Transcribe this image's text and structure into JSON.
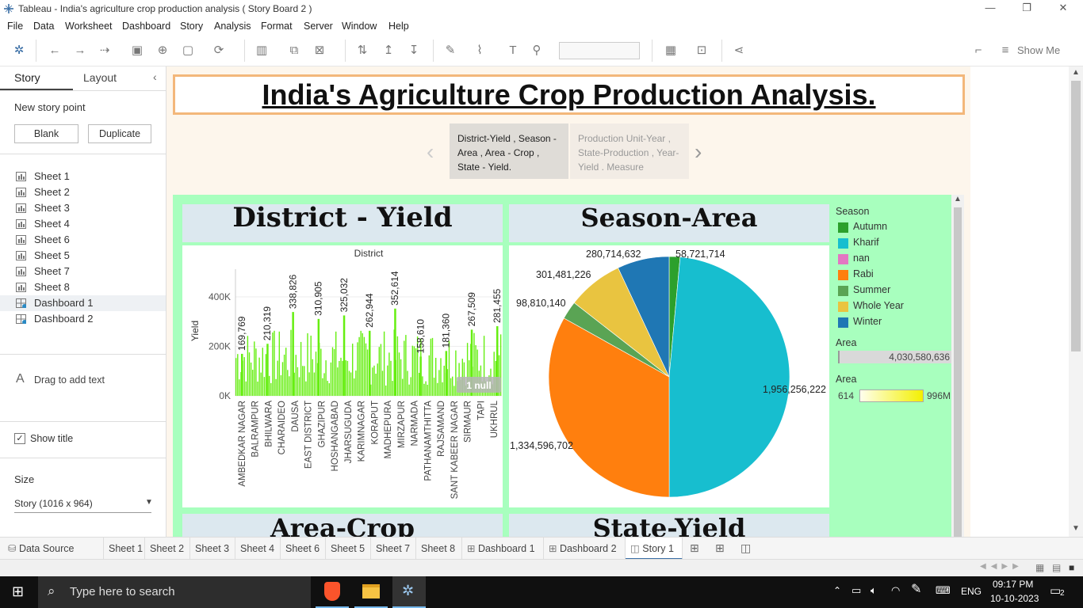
{
  "window": {
    "title": "Tableau - India's agriculture crop production analysis ( Story Board 2 )",
    "minimize": "—",
    "restore": "❐",
    "close": "✕"
  },
  "menu": [
    "File",
    "Data",
    "Worksheet",
    "Dashboard",
    "Story",
    "Analysis",
    "Format",
    "Server",
    "Window",
    "Help"
  ],
  "toolbar": {
    "show_me": "Show Me"
  },
  "left_pane": {
    "tabs": {
      "story": "Story",
      "layout": "Layout"
    },
    "new_story_point": "New story point",
    "blank_label": "Blank",
    "duplicate_label": "Duplicate",
    "items": [
      "Sheet 1",
      "Sheet 2",
      "Sheet 3",
      "Sheet 4",
      "Sheet 6",
      "Sheet 5",
      "Sheet 7",
      "Sheet 8",
      "Dashboard 1",
      "Dashboard 2"
    ],
    "drag_text": "Drag to add text",
    "show_title": "Show title",
    "size_heading": "Size",
    "size_value": "Story (1016 x 964)"
  },
  "story": {
    "title": "India's Agriculture Crop Production Analysis.",
    "points": [
      "District-Yield , Season - Area , Area - Crop , State - Yield.",
      "Production Unit-Year , State-Production , Year-Yield . Measure"
    ]
  },
  "dashboard": {
    "panel_titles": {
      "district_yield": "District - Yield",
      "season_area": "Season-Area",
      "area_crop": "Area-Crop",
      "state_yield": "State-Yield"
    },
    "legend": {
      "season_title": "Season",
      "area_title": "Area",
      "area_value": "4,030,580,636",
      "area2_title": "Area",
      "area2_min": "614",
      "area2_max": "996M"
    },
    "null_badge": "1 null"
  },
  "chart_data": [
    {
      "type": "bar",
      "title": "District",
      "ylabel": "Yield",
      "yticks": [
        "0K",
        "200K",
        "400K"
      ],
      "ylim": [
        0,
        480000
      ],
      "categories": [
        "AMBEDKAR NAGAR",
        "BALRAMPUR",
        "BHILWARA",
        "CHARAIDEO",
        "DAUSA",
        "EAST DISTRICT",
        "GHAZIPUR",
        "HOSHANGABAD",
        "JHARSUGUDA",
        "KARIMNAGAR",
        "KORAPUT",
        "MADHEPURA",
        "MIRZAPUR",
        "NARMADA",
        "PATHANAMTHITTA",
        "RAJSAMAND",
        "SANT KABEER NAGAR",
        "SIRMAUR",
        "TAPI",
        "UKHRUL"
      ],
      "labeled_values": [
        {
          "label": "169,769",
          "value": 169769
        },
        {
          "label": "210,319",
          "value": 210319
        },
        {
          "label": "338,826",
          "value": 338826
        },
        {
          "label": "310,905",
          "value": 310905
        },
        {
          "label": "325,032",
          "value": 325032
        },
        {
          "label": "262,944",
          "value": 262944
        },
        {
          "label": "352,614",
          "value": 352614
        },
        {
          "label": "158,610",
          "value": 158610
        },
        {
          "label": "181,360",
          "value": 181360
        },
        {
          "label": "267,509",
          "value": 267509
        },
        {
          "label": "281,455",
          "value": 281455
        }
      ],
      "bar_color": "#66ee11"
    },
    {
      "type": "pie",
      "series_name": "Season",
      "slices": [
        {
          "name": "Autumn",
          "value": 58721714,
          "label": "58,721,714",
          "color": "#2ca02c"
        },
        {
          "name": "Kharif",
          "value": 1956256222,
          "label": "1,956,256,222",
          "color": "#17becf"
        },
        {
          "name": "nan",
          "value": 0,
          "label": "",
          "color": "#e377c2"
        },
        {
          "name": "Rabi",
          "value": 1334596702,
          "label": "1,334,596,702",
          "color": "#ff7f0e"
        },
        {
          "name": "Summer",
          "value": 98810140,
          "label": "98,810,140",
          "color": "#5aa454"
        },
        {
          "name": "Whole Year",
          "value": 301481226,
          "label": "301,481,226",
          "color": "#e9c440"
        },
        {
          "name": "Winter",
          "value": 280714632,
          "label": "280,714,632",
          "color": "#1f77b4"
        }
      ]
    }
  ],
  "bottom_tabs": [
    "Data Source",
    "Sheet 1",
    "Sheet 2",
    "Sheet 3",
    "Sheet 4",
    "Sheet 6",
    "Sheet 5",
    "Sheet 7",
    "Sheet 8",
    "Dashboard 1",
    "Dashboard 2",
    "Story 1"
  ],
  "taskbar": {
    "search_placeholder": "Type here to search",
    "lang": "ENG",
    "time": "09:17 PM",
    "date": "10-10-2023",
    "notif_count": "2"
  }
}
